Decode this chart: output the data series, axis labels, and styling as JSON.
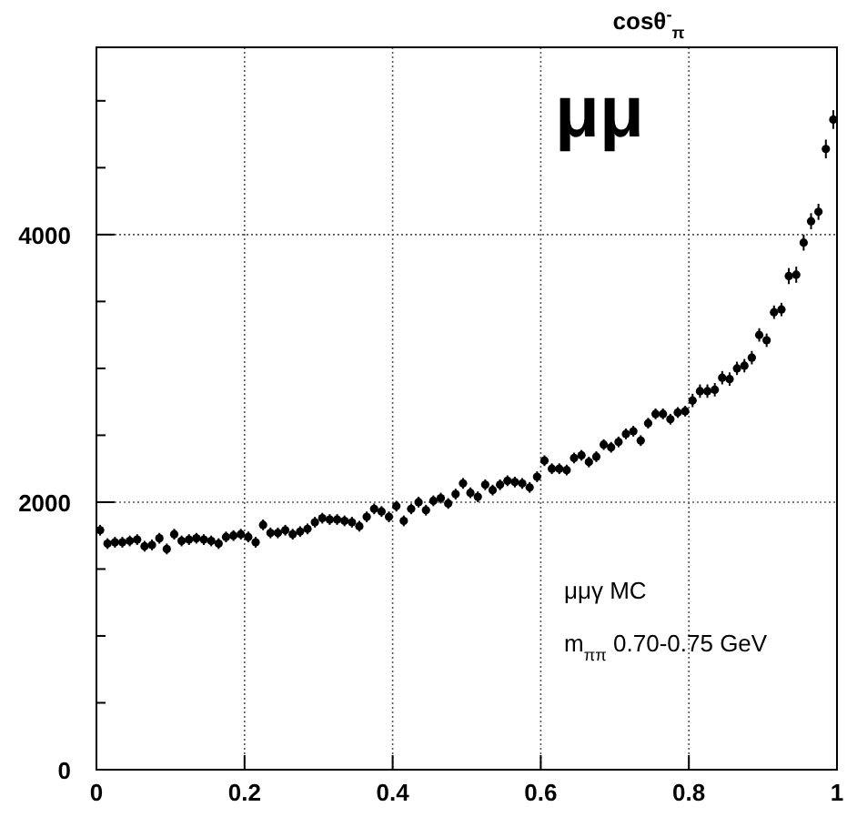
{
  "chart_data": {
    "type": "scatter",
    "title": "cosθ$^{-}$$_{π}$",
    "annotations": [
      "μμ",
      "μμγ MC",
      "m$_{ππ}$ 0.70-0.75 GeV"
    ],
    "x": [
      0.005,
      0.015,
      0.025,
      0.035,
      0.045,
      0.055,
      0.065,
      0.075,
      0.085,
      0.095,
      0.105,
      0.115,
      0.125,
      0.135,
      0.145,
      0.155,
      0.165,
      0.175,
      0.185,
      0.195,
      0.205,
      0.215,
      0.225,
      0.235,
      0.245,
      0.255,
      0.265,
      0.275,
      0.285,
      0.295,
      0.305,
      0.315,
      0.325,
      0.335,
      0.345,
      0.355,
      0.365,
      0.375,
      0.385,
      0.395,
      0.405,
      0.415,
      0.425,
      0.435,
      0.445,
      0.455,
      0.465,
      0.475,
      0.485,
      0.495,
      0.505,
      0.515,
      0.525,
      0.535,
      0.545,
      0.555,
      0.565,
      0.575,
      0.585,
      0.595,
      0.605,
      0.615,
      0.625,
      0.635,
      0.645,
      0.655,
      0.665,
      0.675,
      0.685,
      0.695,
      0.705,
      0.715,
      0.725,
      0.735,
      0.745,
      0.755,
      0.765,
      0.775,
      0.785,
      0.795,
      0.805,
      0.815,
      0.825,
      0.835,
      0.845,
      0.855,
      0.865,
      0.875,
      0.885,
      0.895,
      0.905,
      0.915,
      0.925,
      0.935,
      0.945,
      0.955,
      0.965,
      0.975,
      0.985,
      0.995
    ],
    "series": [
      {
        "color": "#000000",
        "values": [
          1790,
          1690,
          1700,
          1700,
          1710,
          1720,
          1670,
          1680,
          1730,
          1650,
          1760,
          1710,
          1720,
          1730,
          1720,
          1710,
          1690,
          1740,
          1750,
          1760,
          1740,
          1700,
          1830,
          1770,
          1770,
          1790,
          1760,
          1780,
          1800,
          1850,
          1880,
          1870,
          1870,
          1860,
          1850,
          1820,
          1890,
          1950,
          1930,
          1890,
          1970,
          1860,
          1950,
          2000,
          1940,
          2010,
          2030,
          1990,
          2060,
          2140,
          2070,
          2040,
          2130,
          2090,
          2130,
          2160,
          2150,
          2140,
          2110,
          2190,
          2310,
          2250,
          2250,
          2240,
          2330,
          2350,
          2300,
          2340,
          2430,
          2410,
          2450,
          2510,
          2530,
          2460,
          2590,
          2660,
          2660,
          2620,
          2670,
          2680,
          2760,
          2830,
          2830,
          2840,
          2930,
          2920,
          3000,
          3020,
          3080,
          3250,
          3210,
          3420,
          3440,
          3690,
          3700,
          3940,
          4100,
          4170,
          4640,
          4860
        ],
        "errors": [
          40,
          40,
          40,
          40,
          40,
          40,
          40,
          40,
          40,
          40,
          40,
          40,
          40,
          40,
          40,
          40,
          40,
          40,
          40,
          40,
          40,
          40,
          40,
          40,
          40,
          40,
          40,
          40,
          40,
          40,
          40,
          40,
          40,
          40,
          40,
          40,
          40,
          40,
          40,
          40,
          40,
          40,
          40,
          40,
          40,
          40,
          40,
          40,
          40,
          40,
          40,
          40,
          40,
          40,
          40,
          40,
          40,
          40,
          40,
          40,
          40,
          40,
          40,
          40,
          40,
          40,
          40,
          40,
          40,
          40,
          40,
          40,
          40,
          40,
          40,
          40,
          40,
          40,
          40,
          40,
          50,
          50,
          50,
          50,
          50,
          50,
          50,
          50,
          50,
          50,
          50,
          50,
          50,
          60,
          60,
          60,
          60,
          60,
          70,
          70
        ]
      }
    ],
    "marker": "circle",
    "xlim": [
      0,
      1
    ],
    "xticks": [
      0,
      0.2,
      0.4,
      0.6,
      0.8,
      1
    ],
    "ylim": [
      0,
      5400
    ],
    "yticks": [
      0,
      {
        "value": 500,
        "label": null
      },
      {
        "value": 1000,
        "label": null
      },
      {
        "value": 1500,
        "label": null
      },
      2000,
      {
        "value": 2500,
        "label": null
      },
      {
        "value": 3000,
        "label": null
      },
      {
        "value": 3500,
        "label": null
      },
      4000,
      {
        "value": 4500,
        "label": null
      },
      {
        "value": 5000,
        "label": null
      }
    ],
    "grid": true
  }
}
